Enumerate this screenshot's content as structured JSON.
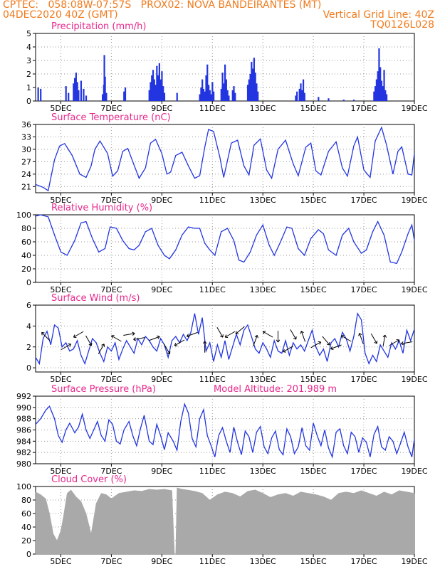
{
  "header": {
    "line1_left": "CPTEC:   058:08W-07:57S   PROX02: NOVA BANDEIRANTES (MT)",
    "line2_left": "04DEC2020 40Z (GMT)",
    "line2_right": "Vertical Grid Line: 40Z",
    "line3_right": "TQ0126L028"
  },
  "colors": {
    "header": "#f07a1c",
    "title": "#e8288c",
    "series": "#2235e0",
    "cloud": "#a9a9a9",
    "grid": "#999999"
  },
  "chart_data": [
    {
      "type": "bar",
      "title": "Precipitation (mm/h)",
      "ylim": [
        0,
        5
      ],
      "yticks": [
        0,
        1,
        2,
        3,
        4,
        5
      ],
      "xlim": [
        4.0,
        19.0
      ],
      "xticks": [
        "5DEC",
        "7DEC",
        "9DEC",
        "11DEC",
        "13DEC",
        "15DEC",
        "17DEC",
        "19DEC"
      ],
      "bars": [
        [
          4.1,
          1.0
        ],
        [
          4.2,
          0.9
        ],
        [
          5.2,
          1.1
        ],
        [
          5.3,
          0.6
        ],
        [
          5.5,
          1.3
        ],
        [
          5.55,
          1.7
        ],
        [
          5.6,
          2.1
        ],
        [
          5.65,
          1.4
        ],
        [
          5.7,
          0.8
        ],
        [
          5.8,
          1.5
        ],
        [
          5.9,
          0.9
        ],
        [
          6.0,
          0.4
        ],
        [
          6.65,
          0.5
        ],
        [
          6.7,
          1.2
        ],
        [
          6.72,
          3.4
        ],
        [
          6.75,
          1.8
        ],
        [
          6.8,
          0.6
        ],
        [
          7.5,
          0.7
        ],
        [
          7.55,
          1.0
        ],
        [
          8.5,
          0.8
        ],
        [
          8.55,
          1.4
        ],
        [
          8.6,
          1.9
        ],
        [
          8.65,
          2.3
        ],
        [
          8.7,
          1.6
        ],
        [
          8.75,
          1.2
        ],
        [
          8.8,
          2.6
        ],
        [
          8.85,
          1.9
        ],
        [
          8.9,
          2.8
        ],
        [
          8.95,
          1.6
        ],
        [
          9.0,
          2.2
        ],
        [
          9.05,
          1.1
        ],
        [
          9.1,
          0.6
        ],
        [
          9.6,
          0.6
        ],
        [
          10.5,
          0.5
        ],
        [
          10.55,
          1.0
        ],
        [
          10.6,
          1.6
        ],
        [
          10.65,
          0.9
        ],
        [
          10.7,
          0.7
        ],
        [
          10.75,
          1.9
        ],
        [
          10.8,
          2.7
        ],
        [
          10.85,
          1.2
        ],
        [
          10.9,
          0.8
        ],
        [
          10.95,
          0.5
        ],
        [
          11.0,
          1.4
        ],
        [
          11.05,
          0.7
        ],
        [
          11.35,
          0.9
        ],
        [
          11.4,
          2.1
        ],
        [
          11.45,
          1.3
        ],
        [
          11.5,
          2.7
        ],
        [
          11.55,
          1.6
        ],
        [
          11.6,
          0.8
        ],
        [
          11.65,
          0.4
        ],
        [
          11.8,
          0.8
        ],
        [
          11.85,
          1.1
        ],
        [
          11.9,
          0.6
        ],
        [
          12.4,
          1.2
        ],
        [
          12.45,
          1.6
        ],
        [
          12.5,
          2.0
        ],
        [
          12.55,
          2.9
        ],
        [
          12.6,
          2.4
        ],
        [
          12.65,
          3.2
        ],
        [
          12.7,
          2.1
        ],
        [
          12.75,
          1.3
        ],
        [
          12.8,
          0.7
        ],
        [
          14.3,
          0.4
        ],
        [
          14.35,
          0.7
        ],
        [
          14.45,
          0.9
        ],
        [
          14.5,
          1.3
        ],
        [
          14.55,
          0.8
        ],
        [
          14.6,
          1.6
        ],
        [
          14.65,
          0.6
        ],
        [
          15.2,
          0.3
        ],
        [
          15.6,
          0.2
        ],
        [
          16.2,
          0.1
        ],
        [
          16.6,
          0.1
        ],
        [
          17.4,
          0.7
        ],
        [
          17.45,
          1.1
        ],
        [
          17.5,
          1.6
        ],
        [
          17.55,
          2.2
        ],
        [
          17.6,
          3.9
        ],
        [
          17.65,
          2.5
        ],
        [
          17.7,
          1.5
        ],
        [
          17.75,
          1.1
        ],
        [
          17.8,
          2.3
        ],
        [
          17.85,
          0.8
        ],
        [
          17.9,
          0.5
        ]
      ]
    },
    {
      "type": "line",
      "title": "Surface Temperature (nC)",
      "ylim": [
        19.5,
        36
      ],
      "yticks": [
        21,
        24,
        27,
        30,
        33,
        36
      ],
      "xlim": [
        4.0,
        19.0
      ],
      "xticks": [
        "5DEC",
        "7DEC",
        "9DEC",
        "11DEC",
        "13DEC",
        "15DEC",
        "17DEC",
        "19DEC"
      ],
      "x": [
        4.0,
        4.3,
        4.5,
        4.75,
        4.95,
        5.15,
        5.45,
        5.75,
        6.0,
        6.2,
        6.35,
        6.55,
        6.85,
        7.05,
        7.25,
        7.45,
        7.65,
        7.85,
        8.1,
        8.35,
        8.55,
        8.75,
        9.0,
        9.2,
        9.35,
        9.55,
        9.8,
        10.05,
        10.3,
        10.5,
        10.7,
        10.85,
        11.05,
        11.3,
        11.45,
        11.75,
        12.0,
        12.25,
        12.45,
        12.65,
        12.9,
        13.15,
        13.35,
        13.6,
        13.9,
        14.2,
        14.4,
        14.7,
        14.9,
        15.1,
        15.3,
        15.6,
        15.9,
        16.15,
        16.35,
        16.6,
        16.75,
        17.0,
        17.25,
        17.45,
        17.7,
        17.9,
        18.15,
        18.35,
        18.5,
        18.75,
        18.9,
        19.0
      ],
      "y": [
        21.5,
        20.8,
        20.0,
        27.5,
        30.8,
        31.4,
        28.5,
        24.0,
        23.2,
        26.0,
        30.0,
        32.0,
        29.0,
        23.5,
        24.8,
        29.5,
        30.2,
        27.0,
        23.0,
        25.5,
        31.5,
        32.4,
        29.0,
        24.0,
        24.5,
        28.5,
        29.3,
        26.0,
        23.0,
        23.6,
        30.5,
        34.8,
        34.3,
        28.0,
        23.2,
        31.5,
        32.2,
        26.0,
        23.8,
        31.0,
        32.5,
        25.0,
        23.0,
        30.0,
        32.2,
        26.5,
        23.6,
        30.5,
        31.5,
        24.8,
        23.8,
        29.5,
        31.8,
        25.5,
        23.5,
        30.8,
        33.0,
        25.0,
        23.2,
        32.0,
        35.3,
        31.0,
        24.0,
        29.5,
        30.6,
        24.0,
        23.8,
        29.0
      ]
    },
    {
      "type": "line",
      "title": "Relative Humidity (%)",
      "ylim": [
        0,
        100
      ],
      "yticks": [
        0,
        20,
        40,
        60,
        80,
        100
      ],
      "xlim": [
        4.0,
        19.0
      ],
      "xticks": [
        "5DEC",
        "7DEC",
        "9DEC",
        "11DEC",
        "13DEC",
        "15DEC",
        "17DEC",
        "19DEC"
      ],
      "x": [
        4.0,
        4.2,
        4.5,
        4.75,
        5.0,
        5.25,
        5.55,
        5.8,
        6.0,
        6.25,
        6.5,
        6.75,
        6.95,
        7.2,
        7.45,
        7.7,
        7.9,
        8.1,
        8.35,
        8.6,
        8.85,
        9.1,
        9.3,
        9.55,
        9.8,
        10.05,
        10.3,
        10.5,
        10.7,
        10.9,
        11.1,
        11.35,
        11.6,
        11.85,
        12.05,
        12.25,
        12.5,
        12.75,
        13.0,
        13.25,
        13.45,
        13.7,
        13.95,
        14.15,
        14.4,
        14.65,
        14.9,
        15.2,
        15.4,
        15.6,
        15.9,
        16.15,
        16.4,
        16.6,
        16.9,
        17.1,
        17.35,
        17.55,
        17.8,
        18.05,
        18.3,
        18.5,
        18.75,
        18.9,
        19.0
      ],
      "y": [
        98,
        100,
        97,
        70,
        45,
        40,
        62,
        88,
        90,
        65,
        45,
        50,
        82,
        80,
        62,
        50,
        48,
        55,
        75,
        80,
        55,
        40,
        35,
        48,
        70,
        82,
        80,
        80,
        58,
        48,
        40,
        75,
        80,
        62,
        33,
        30,
        45,
        70,
        85,
        55,
        40,
        60,
        82,
        80,
        50,
        40,
        65,
        78,
        72,
        48,
        40,
        70,
        80,
        60,
        43,
        48,
        75,
        90,
        70,
        30,
        28,
        45,
        72,
        85,
        62
      ]
    },
    {
      "type": "line",
      "title": "Surface Wind (m/s)",
      "ylim": [
        -0.4,
        6
      ],
      "yticks": [
        0,
        2,
        4,
        6
      ],
      "xlim": [
        4.0,
        19.0
      ],
      "xticks": [
        "5DEC",
        "7DEC",
        "9DEC",
        "11DEC",
        "13DEC",
        "15DEC",
        "17DEC",
        "19DEC"
      ],
      "x": [
        4.0,
        4.15,
        4.3,
        4.45,
        4.6,
        4.75,
        4.9,
        5.05,
        5.2,
        5.35,
        5.5,
        5.65,
        5.8,
        5.95,
        6.1,
        6.25,
        6.4,
        6.55,
        6.7,
        6.85,
        7.0,
        7.15,
        7.3,
        7.45,
        7.6,
        7.75,
        7.9,
        8.05,
        8.2,
        8.35,
        8.5,
        8.65,
        8.8,
        8.95,
        9.1,
        9.25,
        9.4,
        9.55,
        9.7,
        9.85,
        10.0,
        10.15,
        10.3,
        10.45,
        10.6,
        10.75,
        10.9,
        11.05,
        11.2,
        11.35,
        11.5,
        11.65,
        11.8,
        11.95,
        12.1,
        12.25,
        12.4,
        12.55,
        12.7,
        12.85,
        13.0,
        13.15,
        13.3,
        13.45,
        13.6,
        13.75,
        13.9,
        14.05,
        14.2,
        14.35,
        14.5,
        14.65,
        14.8,
        14.95,
        15.1,
        15.25,
        15.4,
        15.55,
        15.7,
        15.85,
        16.0,
        16.15,
        16.3,
        16.45,
        16.6,
        16.75,
        16.9,
        17.05,
        17.2,
        17.35,
        17.5,
        17.65,
        17.8,
        17.95,
        18.1,
        18.25,
        18.4,
        18.55,
        18.7,
        18.85,
        19.0
      ],
      "y": [
        1.0,
        0.4,
        2.8,
        3.5,
        2.2,
        4.1,
        3.8,
        2.0,
        2.4,
        1.6,
        1.8,
        2.6,
        1.2,
        0.4,
        1.6,
        2.8,
        2.4,
        1.4,
        0.6,
        2.0,
        1.6,
        2.4,
        0.8,
        1.8,
        2.6,
        2.0,
        1.4,
        2.8,
        2.2,
        3.0,
        2.6,
        2.0,
        1.6,
        2.8,
        2.2,
        1.0,
        2.6,
        3.0,
        2.4,
        3.2,
        2.6,
        3.4,
        5.2,
        3.2,
        4.8,
        1.6,
        2.4,
        0.6,
        2.2,
        1.0,
        2.6,
        0.8,
        2.0,
        3.2,
        2.2,
        3.6,
        4.1,
        3.0,
        1.8,
        1.4,
        2.4,
        1.8,
        1.0,
        2.6,
        1.6,
        1.4,
        2.6,
        1.2,
        2.4,
        1.8,
        2.2,
        1.6,
        2.6,
        3.6,
        2.0,
        1.2,
        1.8,
        0.6,
        2.4,
        2.8,
        2.0,
        3.4,
        2.8,
        1.6,
        3.0,
        5.2,
        4.6,
        1.4,
        0.4,
        1.2,
        0.6,
        2.2,
        1.6,
        1.0,
        2.4,
        1.8,
        2.6,
        1.4,
        3.6,
        2.6,
        3.7
      ]
    },
    {
      "type": "line",
      "title": "Surface Pressure (hPa)",
      "annotation": "Model Altitude: 201.989 m",
      "ylim": [
        980,
        992
      ],
      "yticks": [
        980,
        982,
        984,
        986,
        988,
        990,
        992
      ],
      "xlim": [
        4.0,
        19.0
      ],
      "xticks": [
        "5DEC",
        "7DEC",
        "9DEC",
        "11DEC",
        "13DEC",
        "15DEC",
        "17DEC",
        "19DEC"
      ],
      "x": [
        4.0,
        4.2,
        4.4,
        4.55,
        4.75,
        4.9,
        5.05,
        5.2,
        5.35,
        5.55,
        5.7,
        5.85,
        6.0,
        6.15,
        6.3,
        6.45,
        6.6,
        6.75,
        6.9,
        7.05,
        7.2,
        7.35,
        7.5,
        7.7,
        7.85,
        8.0,
        8.15,
        8.3,
        8.5,
        8.65,
        8.8,
        8.95,
        9.1,
        9.25,
        9.45,
        9.6,
        9.75,
        9.9,
        10.05,
        10.2,
        10.35,
        10.5,
        10.65,
        10.8,
        10.95,
        11.1,
        11.25,
        11.4,
        11.55,
        11.7,
        11.85,
        12.0,
        12.15,
        12.3,
        12.45,
        12.6,
        12.75,
        12.9,
        13.05,
        13.2,
        13.35,
        13.5,
        13.65,
        13.8,
        13.95,
        14.1,
        14.25,
        14.4,
        14.55,
        14.7,
        14.85,
        15.0,
        15.15,
        15.3,
        15.45,
        15.6,
        15.75,
        15.9,
        16.05,
        16.2,
        16.35,
        16.5,
        16.65,
        16.8,
        16.95,
        17.1,
        17.25,
        17.4,
        17.55,
        17.7,
        17.85,
        18.0,
        18.15,
        18.3,
        18.45,
        18.6,
        18.75,
        18.9,
        19.0
      ],
      "y": [
        987,
        988,
        989.5,
        990.2,
        988,
        985,
        983.8,
        986,
        987.2,
        985.5,
        986.5,
        988.8,
        986,
        984.5,
        986,
        987.5,
        985,
        984,
        987.8,
        987,
        984,
        983.5,
        986,
        987.5,
        985,
        983.2,
        986.2,
        988.6,
        984,
        983.4,
        987,
        985,
        982.5,
        985.5,
        984,
        982.4,
        987.5,
        990.6,
        989,
        984.5,
        983,
        988,
        989.6,
        985,
        983.2,
        981.2,
        985,
        986.4,
        984,
        982,
        986.5,
        983.8,
        981.6,
        985.8,
        984.8,
        982,
        985.6,
        986.6,
        983,
        981.8,
        984.6,
        985.8,
        982.5,
        981.6,
        986.2,
        984.8,
        981.8,
        983,
        986.4,
        983.2,
        982.4,
        987.2,
        985,
        983.2,
        986,
        982.8,
        981.2,
        985.6,
        986.2,
        983.2,
        981.8,
        985.6,
        984.8,
        982,
        984.6,
        983.8,
        981.2,
        985.2,
        986.6,
        983,
        982.4,
        984.8,
        984,
        981.8,
        983.6,
        985.6,
        983,
        981.2,
        984.4
      ]
    },
    {
      "type": "area",
      "title": "Cloud Cover (%)",
      "ylim": [
        0,
        100
      ],
      "yticks": [
        0,
        20,
        40,
        60,
        80,
        100
      ],
      "xlim": [
        4.0,
        19.0
      ],
      "xticks": [
        "5DEC",
        "7DEC",
        "9DEC",
        "11DEC",
        "13DEC",
        "15DEC",
        "17DEC",
        "19DEC"
      ],
      "x": [
        4.0,
        4.2,
        4.4,
        4.55,
        4.7,
        4.85,
        5.0,
        5.1,
        5.25,
        5.4,
        5.6,
        5.8,
        6.0,
        6.2,
        6.4,
        6.6,
        6.8,
        7.0,
        7.3,
        7.6,
        7.9,
        8.2,
        8.5,
        8.8,
        9.1,
        9.4,
        9.5,
        9.55,
        9.6,
        9.8,
        10.0,
        10.3,
        10.6,
        10.9,
        11.2,
        11.5,
        11.8,
        12.1,
        12.4,
        12.7,
        13.0,
        13.3,
        13.6,
        13.9,
        14.2,
        14.5,
        14.8,
        15.1,
        15.4,
        15.7,
        16.0,
        16.3,
        16.6,
        16.9,
        17.2,
        17.5,
        17.8,
        18.1,
        18.4,
        18.7,
        19.0
      ],
      "y": [
        92,
        88,
        82,
        60,
        30,
        20,
        35,
        55,
        90,
        95,
        85,
        78,
        60,
        30,
        75,
        90,
        88,
        82,
        90,
        92,
        94,
        93,
        96,
        95,
        96,
        94,
        0,
        0,
        98,
        96,
        95,
        93,
        90,
        80,
        88,
        92,
        90,
        85,
        93,
        95,
        90,
        84,
        88,
        90,
        86,
        92,
        90,
        88,
        85,
        80,
        90,
        92,
        90,
        94,
        90,
        86,
        92,
        88,
        94,
        92,
        90
      ]
    }
  ]
}
